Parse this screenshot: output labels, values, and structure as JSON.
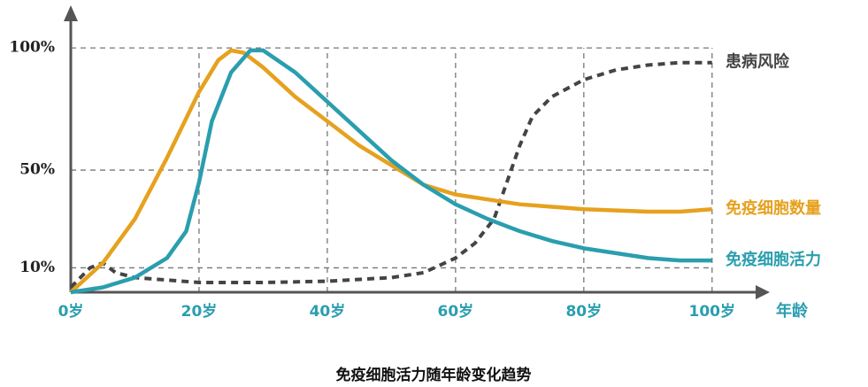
{
  "chart_data": {
    "type": "line",
    "title": "免疫细胞活力随年龄变化趋势",
    "xlabel": "年龄",
    "xlim": [
      0,
      109
    ],
    "ylim": [
      0,
      116
    ],
    "xticks": [
      {
        "value": 0,
        "label": "0岁"
      },
      {
        "value": 20,
        "label": "20岁"
      },
      {
        "value": 40,
        "label": "40岁"
      },
      {
        "value": 60,
        "label": "60岁"
      },
      {
        "value": 80,
        "label": "80岁"
      },
      {
        "value": 100,
        "label": "100岁"
      }
    ],
    "yticks": [
      {
        "value": 10,
        "label": "10%"
      },
      {
        "value": 50,
        "label": "50%"
      },
      {
        "value": 100,
        "label": "100%"
      }
    ],
    "grid": true,
    "series": [
      {
        "name": "患病风险",
        "color": "#444444",
        "dashed": true,
        "x": [
          0,
          3,
          5,
          7,
          10,
          15,
          20,
          30,
          40,
          50,
          55,
          60,
          63,
          66,
          68,
          70,
          72,
          75,
          80,
          85,
          90,
          95,
          100
        ],
        "values": [
          2,
          10,
          12,
          8,
          6,
          5,
          4,
          4,
          4.5,
          6,
          8,
          14,
          20,
          30,
          45,
          60,
          72,
          80,
          87,
          91,
          93,
          94,
          94
        ]
      },
      {
        "name": "免疫细胞数量",
        "color": "#e6a11e",
        "dashed": false,
        "x": [
          0,
          5,
          10,
          15,
          20,
          23,
          25,
          27,
          30,
          35,
          40,
          45,
          50,
          55,
          60,
          65,
          70,
          75,
          80,
          85,
          90,
          95,
          100
        ],
        "values": [
          0,
          12,
          30,
          55,
          82,
          95,
          99,
          98,
          92,
          80,
          70,
          60,
          52,
          44,
          40,
          38,
          36,
          35,
          34,
          33.5,
          33,
          33,
          34
        ]
      },
      {
        "name": "免疫细胞活力",
        "color": "#2a9eae",
        "dashed": false,
        "x": [
          0,
          5,
          10,
          15,
          18,
          20,
          22,
          25,
          28,
          30,
          35,
          40,
          45,
          50,
          55,
          60,
          65,
          70,
          75,
          80,
          85,
          90,
          95,
          100
        ],
        "values": [
          0,
          2,
          6,
          14,
          25,
          45,
          70,
          90,
          99,
          99,
          90,
          78,
          66,
          54,
          44,
          36,
          30,
          25,
          21,
          18,
          16,
          14,
          13,
          13
        ]
      }
    ]
  }
}
